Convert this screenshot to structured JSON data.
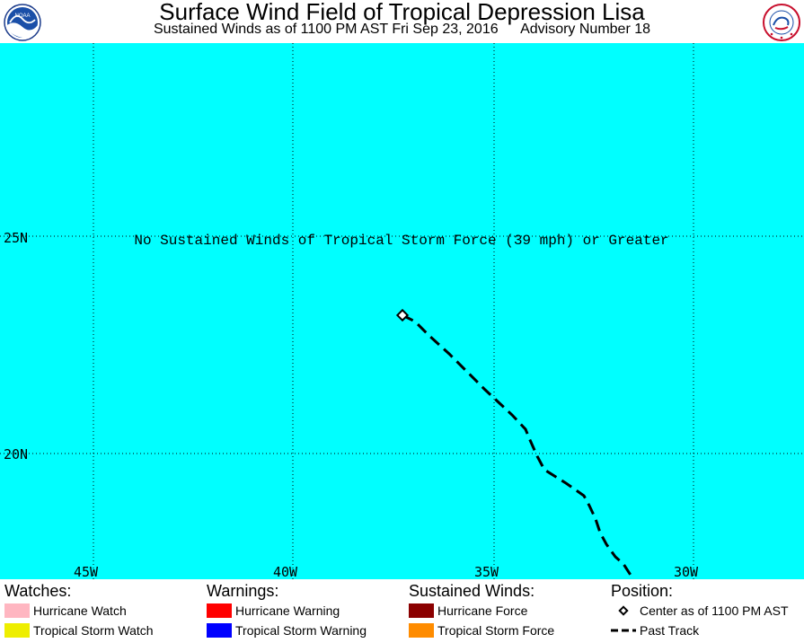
{
  "header": {
    "title": "Surface Wind Field of Tropical Depression Lisa",
    "subtitle_time": "Sustained Winds as of 1100 PM AST Fri Sep 23, 2016",
    "subtitle_advisory": "Advisory Number 18",
    "left_logo": "NOAA",
    "right_logo": "NATIONAL WEATHER SERVICE"
  },
  "map": {
    "ocean_color": "#00ffff",
    "lat_labels": [
      "25N",
      "20N"
    ],
    "lon_labels": [
      "45W",
      "40W",
      "35W",
      "30W"
    ],
    "message": "No Sustained Winds of Tropical Storm Force (39 mph) or Greater",
    "center_marker": "diamond-icon",
    "track_style": "dashed"
  },
  "legend": {
    "watches": {
      "heading": "Watches:",
      "items": [
        {
          "label": "Hurricane Watch",
          "color": "#ffb6c1"
        },
        {
          "label": "Tropical Storm Watch",
          "color": "#eeee00"
        }
      ]
    },
    "warnings": {
      "heading": "Warnings:",
      "items": [
        {
          "label": "Hurricane Warning",
          "color": "#ff0000"
        },
        {
          "label": "Tropical Storm Warning",
          "color": "#0000ff"
        }
      ]
    },
    "winds": {
      "heading": "Sustained Winds:",
      "items": [
        {
          "label": "Hurricane Force",
          "color": "#8b0000"
        },
        {
          "label": "Tropical Storm Force",
          "color": "#ff8c00"
        }
      ]
    },
    "position": {
      "heading": "Position:",
      "center_label": "Center as of 1100 PM AST",
      "track_label": "Past Track"
    }
  }
}
